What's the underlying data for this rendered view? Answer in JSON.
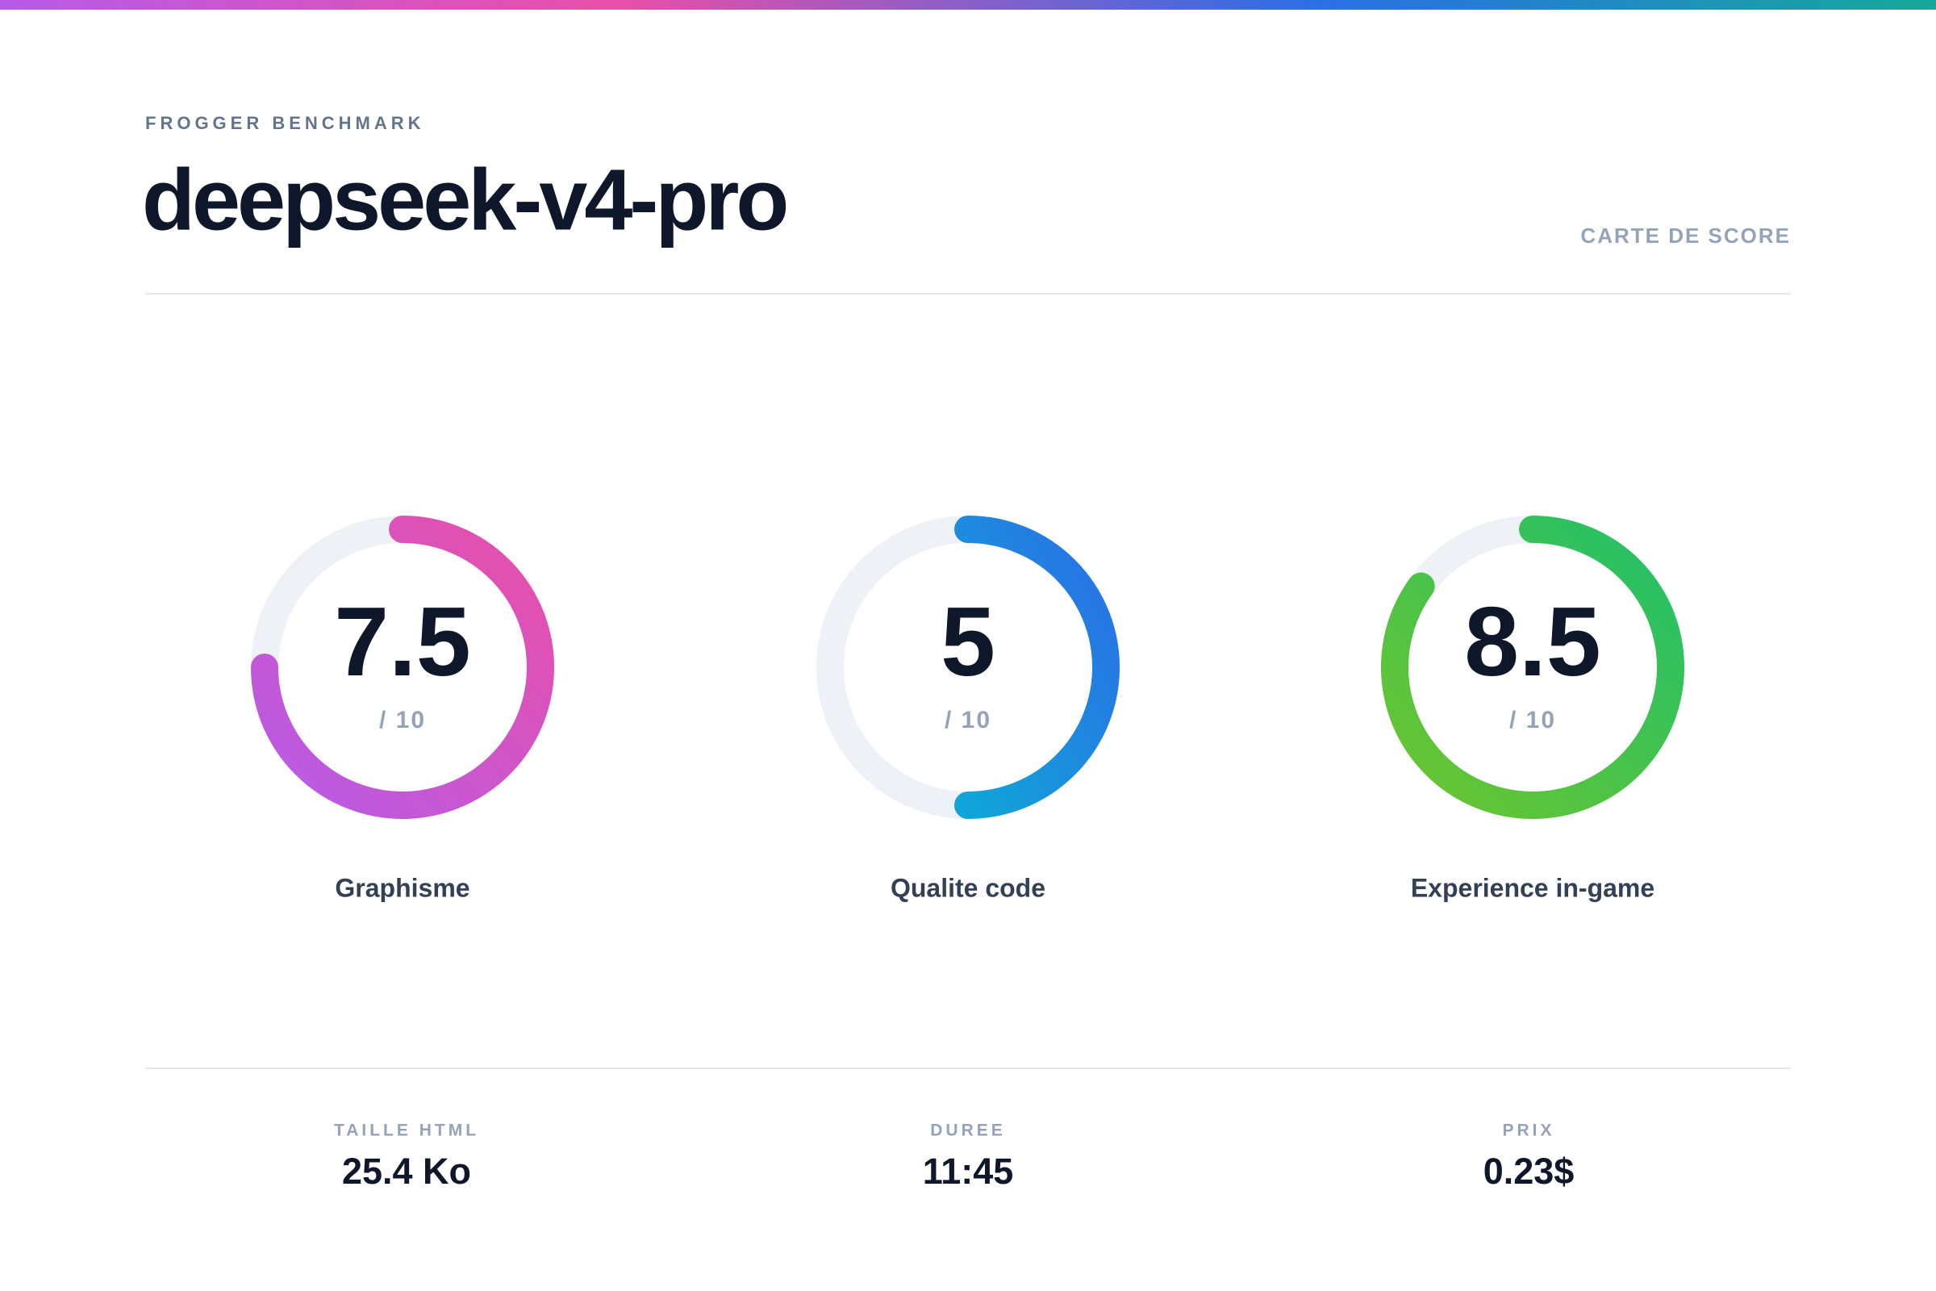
{
  "header": {
    "eyebrow": "FROGGER BENCHMARK",
    "title": "deepseek-v4-pro",
    "tag": "CARTE DE SCORE"
  },
  "gauges": [
    {
      "label": "Graphisme",
      "score": 7.5,
      "max": {
        "value": 10,
        "label": "/ 10"
      },
      "colors": [
        "#e84fa8",
        "#b65be8"
      ]
    },
    {
      "label": "Qualite code",
      "score": 5,
      "max": {
        "value": 10,
        "label": "/ 10"
      },
      "colors": [
        "#2b6fe6",
        "#10a5d8"
      ]
    },
    {
      "label": "Experience in-game",
      "score": 8.5,
      "max": {
        "value": 10,
        "label": "/ 10"
      },
      "colors": [
        "#22c06a",
        "#6cc52e"
      ]
    }
  ],
  "stats": [
    {
      "label": "TAILLE HTML",
      "value": "25.4 Ko"
    },
    {
      "label": "DUREE",
      "value": "11:45"
    },
    {
      "label": "PRIX",
      "value": "0.23$"
    }
  ]
}
